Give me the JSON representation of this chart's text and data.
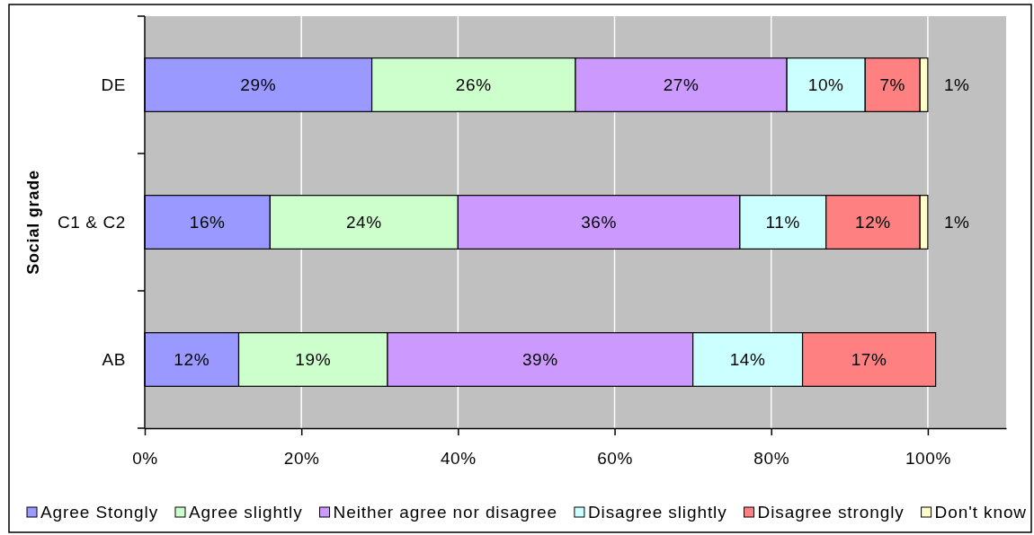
{
  "chart_data": {
    "type": "bar",
    "orientation": "horizontal",
    "stacked": true,
    "ylabel": "Social grade",
    "categories": [
      "DE",
      "C1 & C2",
      "AB"
    ],
    "series": [
      {
        "name": "Agree Stongly",
        "color": "#9999ff",
        "values": [
          29,
          16,
          12
        ],
        "value_labels": [
          "29%",
          "16%",
          "12%"
        ]
      },
      {
        "name": "Agree slightly",
        "color": "#ccffcc",
        "values": [
          26,
          24,
          19
        ],
        "value_labels": [
          "26%",
          "24%",
          "19%"
        ]
      },
      {
        "name": "Neither agree nor disagree",
        "color": "#cc99ff",
        "values": [
          27,
          36,
          39
        ],
        "value_labels": [
          "27%",
          "36%",
          "39%"
        ]
      },
      {
        "name": "Disagree slightly",
        "color": "#ccffff",
        "values": [
          10,
          11,
          14
        ],
        "value_labels": [
          "10%",
          "11%",
          "14%"
        ]
      },
      {
        "name": "Disagree strongly",
        "color": "#ff8080",
        "values": [
          7,
          12,
          17
        ],
        "value_labels": [
          "7%",
          "12%",
          "17%"
        ]
      },
      {
        "name": "Don't know",
        "color": "#ffffcc",
        "values": [
          1,
          1,
          null
        ],
        "value_labels": [
          "1%",
          "1%",
          null
        ]
      }
    ],
    "xlim": [
      0,
      110
    ],
    "xticks": [
      {
        "value": 0,
        "label": "0%"
      },
      {
        "value": 20,
        "label": "20%"
      },
      {
        "value": 40,
        "label": "40%"
      },
      {
        "value": 60,
        "label": "60%"
      },
      {
        "value": 80,
        "label": "80%"
      },
      {
        "value": 100,
        "label": "100%"
      }
    ],
    "grid": "x",
    "legend": "bottom"
  }
}
